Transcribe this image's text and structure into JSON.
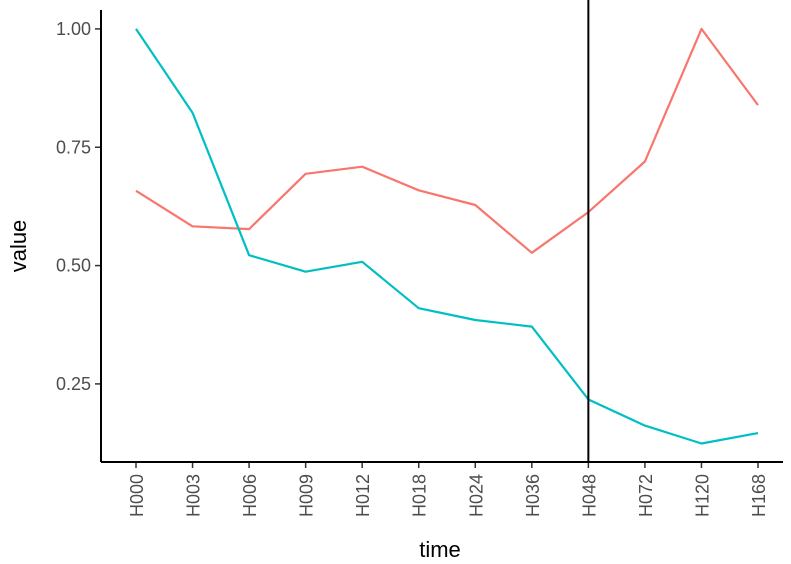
{
  "chart_data": {
    "type": "line",
    "title": "",
    "xlabel": "time",
    "ylabel": "value",
    "categories": [
      "H000",
      "H003",
      "H006",
      "H009",
      "H012",
      "H018",
      "H024",
      "H036",
      "H048",
      "H072",
      "H120",
      "H168"
    ],
    "ylim": [
      0.085,
      1.04
    ],
    "yticks": [
      0.25,
      0.5,
      0.75,
      1.0
    ],
    "ytick_labels": [
      "0.25",
      "0.50",
      "0.75",
      "1.00"
    ],
    "grid": false,
    "legend": "none",
    "vline_at": "H048",
    "series": [
      {
        "color": "#F8766D",
        "values": [
          0.658,
          0.583,
          0.577,
          0.694,
          0.709,
          0.659,
          0.628,
          0.527,
          0.613,
          0.72,
          1.0,
          0.839
        ]
      },
      {
        "color": "#00BFC4",
        "values": [
          1.0,
          0.823,
          0.522,
          0.487,
          0.508,
          0.41,
          0.385,
          0.371,
          0.217,
          0.162,
          0.124,
          0.146
        ]
      }
    ]
  }
}
